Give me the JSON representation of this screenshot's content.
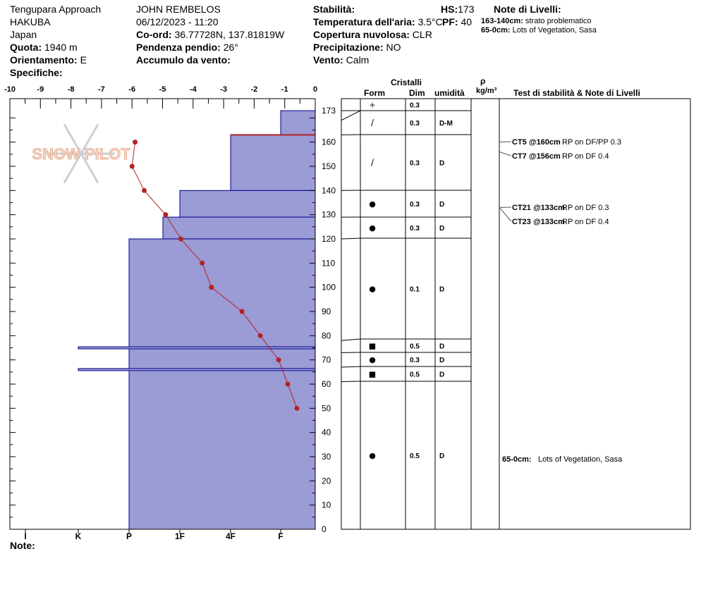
{
  "header": {
    "location": "Tengupara Approach",
    "area": "HAKUBA",
    "country": "Japan",
    "elevation_label": "Quota:",
    "elevation_value": "1940 m",
    "aspect_label": "Orientamento:",
    "aspect_value": "E",
    "specifics_label": "Specifiche:",
    "observer": "JOHN REMBELOS",
    "datetime": "06/12/2023 - 11:20",
    "coord_label": "Co-ord:",
    "coord_value": "36.77728N, 137.81819W",
    "slope_label": "Pendenza pendio:",
    "slope_value": "26°",
    "wind_load_label": "Accumulo da vento:",
    "stability_label": "Stabilità:",
    "air_temp_label": "Temperatura dell'aria:",
    "air_temp_value": "3.5°C",
    "cloud_label": "Copertura nuvolosa:",
    "cloud_value": "CLR",
    "precip_label": "Precipitazione:",
    "precip_value": "NO",
    "wind_label": "Vento:",
    "wind_value": "Calm",
    "hs_label": "HS:",
    "hs_value": "173",
    "pf_label": "PF:",
    "pf_value": "40",
    "layer_notes_title": "Note di Livelli:",
    "layer_notes": [
      {
        "range": "163-140cm:",
        "text": "strato problematico"
      },
      {
        "range": "65-0cm:",
        "text": "Lots of Vegetation, Sasa"
      }
    ]
  },
  "footer": {
    "note_label": "Note:"
  },
  "logo_text": "SNOW PILOT",
  "colors": {
    "hardness_fill": "#9b9bd6",
    "hardness_stroke": "#00008b",
    "temp_line": "#b22222",
    "problem_layer": "#b22222"
  },
  "table_headers": {
    "crystals": "Cristalli",
    "form": "Form",
    "dim": "Dim",
    "humidity": "umidità",
    "rho": "ρ",
    "rho_unit": "kg/m³",
    "tests": "Test di stabilità & Note di Livelli"
  },
  "chart_data": {
    "type": "snow_profile",
    "temp_axis": {
      "ticks": [
        -10,
        -9,
        -8,
        -7,
        -6,
        -5,
        -4,
        -3,
        -2,
        -1,
        0
      ],
      "range": [
        -10,
        0
      ]
    },
    "depth_axis": {
      "ticks": [
        0,
        10,
        20,
        30,
        40,
        50,
        60,
        70,
        80,
        90,
        100,
        110,
        120,
        130,
        140,
        150,
        160,
        173
      ],
      "range": [
        0,
        173
      ]
    },
    "hardness_scale": [
      "I",
      "K",
      "P",
      "1F",
      "4F",
      "F"
    ],
    "hardness_profile": [
      {
        "top": 173,
        "bottom": 163,
        "hardness": "F"
      },
      {
        "top": 163,
        "bottom": 140,
        "hardness": "4F"
      },
      {
        "top": 140,
        "bottom": 129,
        "hardness": "1F"
      },
      {
        "top": 129,
        "bottom": 120,
        "hardness": "1F-"
      },
      {
        "top": 120,
        "bottom": 0,
        "hardness": "P"
      }
    ],
    "thin_layers": [
      {
        "depth": 75,
        "hardness": "K-"
      },
      {
        "depth": 66,
        "hardness": "K-"
      }
    ],
    "problem_layer_depth": 163,
    "temperature_profile": [
      {
        "depth": 160,
        "temp": -5.9
      },
      {
        "depth": 150,
        "temp": -6.0
      },
      {
        "depth": 140,
        "temp": -5.6
      },
      {
        "depth": 130,
        "temp": -4.9
      },
      {
        "depth": 120,
        "temp": -4.4
      },
      {
        "depth": 110,
        "temp": -3.7
      },
      {
        "depth": 100,
        "temp": -3.4
      },
      {
        "depth": 90,
        "temp": -2.4
      },
      {
        "depth": 80,
        "temp": -1.8
      },
      {
        "depth": 70,
        "temp": -1.2
      },
      {
        "depth": 60,
        "temp": -0.9
      },
      {
        "depth": 50,
        "temp": -0.6
      }
    ],
    "layers": [
      {
        "top": 173,
        "bottom": 169,
        "form": "+",
        "dim": "0.3",
        "hum": ""
      },
      {
        "top": 169,
        "bottom": 163,
        "form": "/",
        "dim": "0.3",
        "hum": "D-M"
      },
      {
        "top": 163,
        "bottom": 140,
        "form": "/",
        "dim": "0.3",
        "hum": "D"
      },
      {
        "top": 140,
        "bottom": 129,
        "form": "●",
        "dim": "0.3",
        "hum": "D"
      },
      {
        "top": 129,
        "bottom": 120,
        "form": "●",
        "dim": "0.3",
        "hum": "D"
      },
      {
        "top": 120,
        "bottom": 78,
        "form": "●",
        "dim": "0.1",
        "hum": "D"
      },
      {
        "top": 78,
        "bottom": 73,
        "form": "■",
        "dim": "0.5",
        "hum": "D"
      },
      {
        "top": 73,
        "bottom": 67,
        "form": "●",
        "dim": "0.3",
        "hum": "D"
      },
      {
        "top": 67,
        "bottom": 61,
        "form": "■",
        "dim": "0.5",
        "hum": "D"
      },
      {
        "top": 61,
        "bottom": 0,
        "form": "●",
        "dim": "0.5",
        "hum": "D"
      }
    ],
    "stability_tests": [
      {
        "depth": 160,
        "code": "CT5 @160cm",
        "result": "RP on DF/PP 0.3"
      },
      {
        "depth": 156,
        "code": "CT7 @156cm",
        "result": "RP on DF 0.4"
      },
      {
        "depth": 133,
        "code": "CT21 @133cm",
        "result": "RP on DF 0.3"
      },
      {
        "depth": 133,
        "code": "CT23 @133cm",
        "result": "RP on DF 0.4"
      }
    ],
    "layer_note": {
      "range": "65-0cm:",
      "text": "Lots of Vegetation, Sasa"
    }
  }
}
